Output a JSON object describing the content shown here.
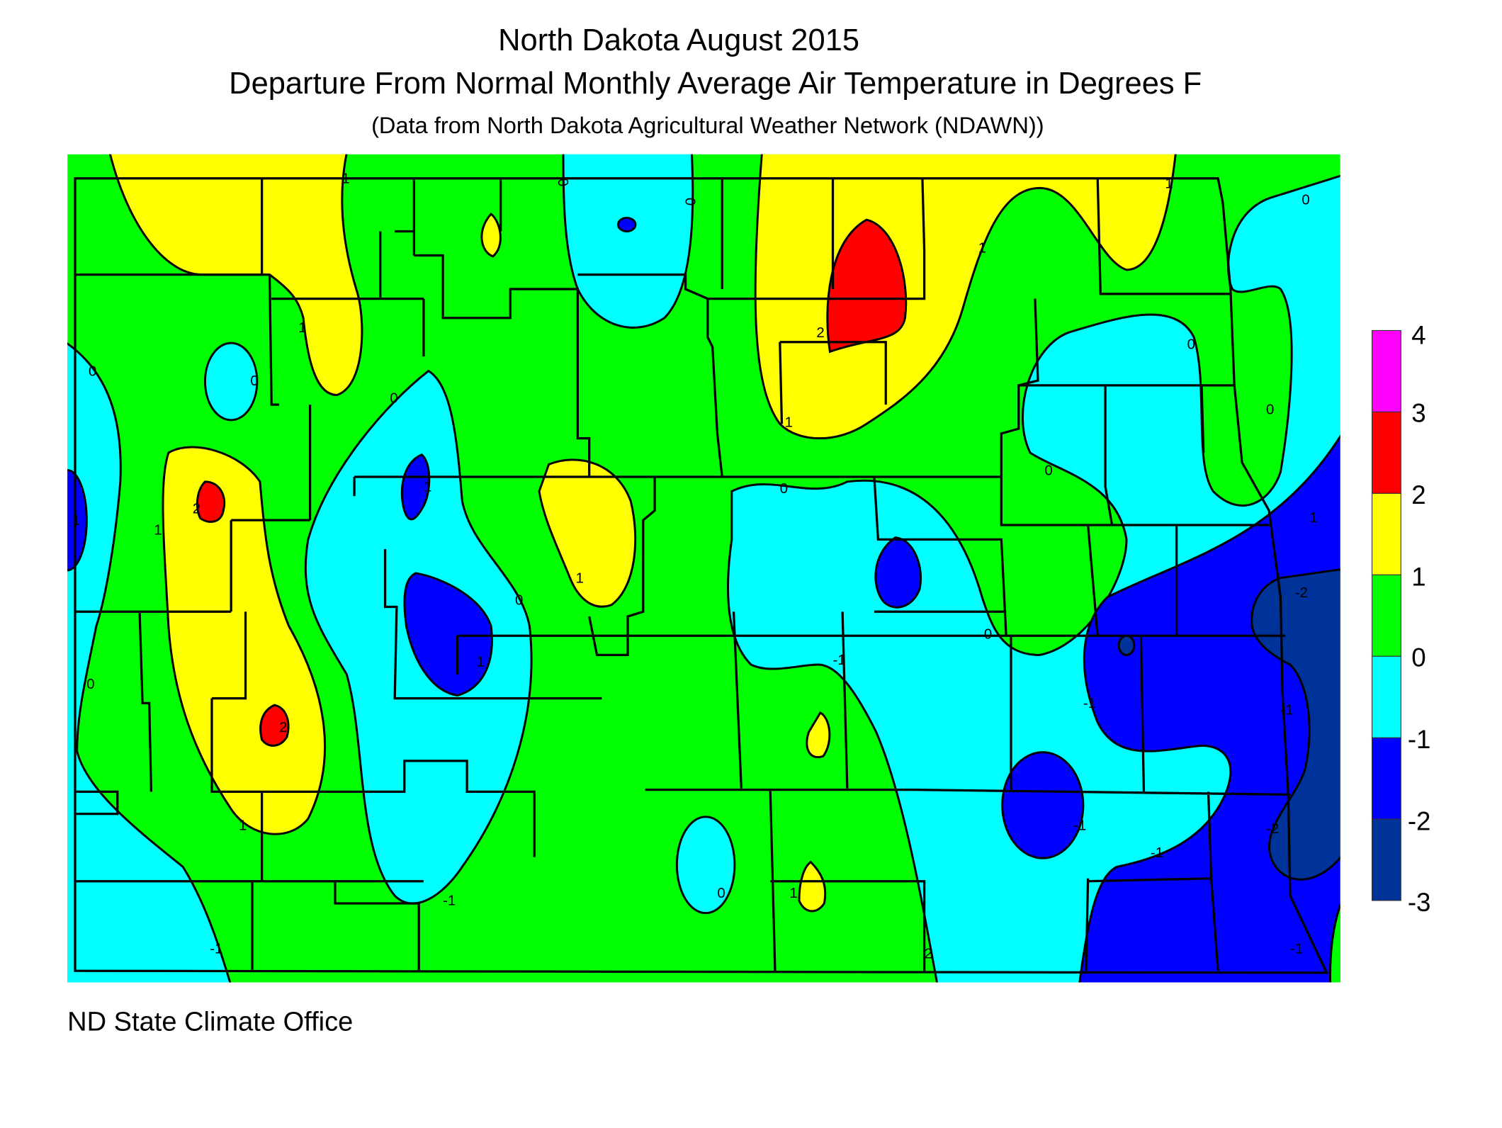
{
  "title": "North Dakota August 2015",
  "subtitle": "Departure From Normal Monthly Average Air Temperature in Degrees F",
  "source_note": "(Data from North Dakota Agricultural Weather Network (NDAWN))",
  "credit": "ND State Climate Office",
  "chart_data": {
    "type": "contour-map",
    "title": "North Dakota August 2015",
    "subtitle": "Departure From Normal Monthly Average Air Temperature in Degrees F",
    "legend_placement": "right",
    "colorbar": {
      "ticks": [
        "4",
        "3",
        "2",
        "1",
        "0",
        "-1",
        "-2",
        "-3"
      ],
      "bands": [
        {
          "from": 3,
          "to": 4,
          "color": "#ff00ff"
        },
        {
          "from": 2,
          "to": 3,
          "color": "#ff0000"
        },
        {
          "from": 1,
          "to": 2,
          "color": "#ffff00"
        },
        {
          "from": 0,
          "to": 1,
          "color": "#00ff00"
        },
        {
          "from": -1,
          "to": 0,
          "color": "#00ffff"
        },
        {
          "from": -2,
          "to": -1,
          "color": "#0000ff"
        },
        {
          "from": -3,
          "to": -2,
          "color": "#003399"
        }
      ]
    },
    "contour_labels": [
      "1",
      "0",
      "0",
      "1",
      "0",
      "0",
      "0",
      "1",
      "1",
      "2",
      "2",
      "1",
      "1",
      "0",
      "1",
      "1",
      "0",
      "1",
      "0",
      "0",
      "1",
      "2",
      "1",
      "1",
      "0",
      "0",
      "0",
      "0",
      "1",
      "-1",
      "-2",
      "-2",
      "-1",
      "-1",
      "-1",
      "-1",
      "-1",
      "0",
      "-1",
      "2",
      "-1"
    ]
  }
}
